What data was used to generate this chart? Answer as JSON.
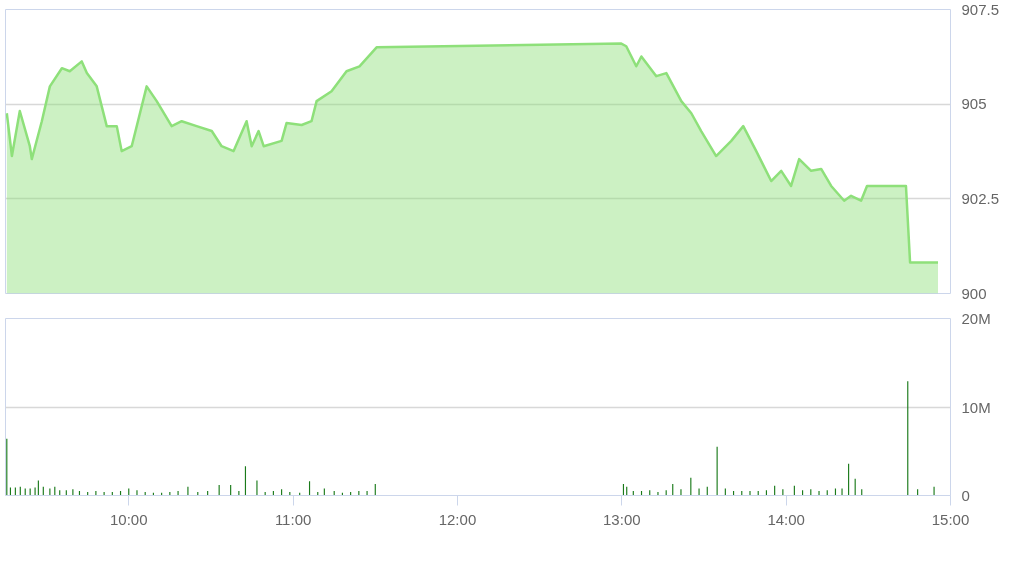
{
  "chart_data": [
    {
      "type": "area",
      "tick_labels": "y",
      "grid": "y",
      "xlim": [
        9.25,
        15
      ],
      "ylim": [
        900,
        907.5
      ],
      "yticks": [
        900,
        902.5,
        905,
        907.5
      ],
      "series": [
        {
          "color": "#8ee07a",
          "x": [
            9.258,
            9.289,
            9.337,
            9.398,
            9.41,
            9.471,
            9.52,
            9.593,
            9.641,
            9.714,
            9.745,
            9.805,
            9.866,
            9.927,
            9.957,
            10.018,
            10.109,
            10.17,
            10.261,
            10.322,
            10.413,
            10.505,
            10.565,
            10.638,
            10.717,
            10.748,
            10.79,
            10.821,
            10.93,
            10.96,
            11.052,
            11.112,
            11.143,
            11.234,
            11.325,
            11.404,
            11.508,
            12.997,
            13.027,
            13.088,
            13.119,
            13.21,
            13.271,
            13.362,
            13.423,
            13.483,
            13.574,
            13.666,
            13.739,
            13.818,
            13.909,
            13.97,
            14.03,
            14.079,
            14.152,
            14.213,
            14.274,
            14.353,
            14.395,
            14.456,
            14.492,
            14.729,
            14.754,
            14.924
          ],
          "values": [
            904.76,
            903.63,
            904.82,
            903.89,
            903.55,
            904.55,
            905.47,
            905.95,
            905.87,
            906.13,
            905.82,
            905.47,
            904.42,
            904.42,
            903.76,
            903.89,
            905.47,
            905.08,
            904.42,
            904.55,
            904.42,
            904.29,
            903.89,
            903.76,
            904.55,
            903.89,
            904.29,
            903.89,
            904.03,
            904.5,
            904.45,
            904.55,
            905.08,
            905.34,
            905.87,
            906.0,
            906.5,
            906.6,
            906.53,
            906.0,
            906.26,
            905.74,
            905.82,
            905.08,
            904.76,
            904.29,
            903.63,
            904.03,
            904.42,
            903.76,
            902.97,
            903.24,
            902.84,
            903.55,
            903.24,
            903.29,
            902.84,
            902.45,
            902.58,
            902.45,
            902.84,
            902.84,
            900.82,
            900.82
          ]
        }
      ]
    },
    {
      "type": "bar",
      "grid": "y",
      "xlim": [
        9.25,
        15
      ],
      "ylim": [
        0,
        20
      ],
      "yticks": [
        0,
        {
          "value": 10,
          "label": "10M"
        },
        {
          "value": 20,
          "label": "20M"
        }
      ],
      "xticks": [
        {
          "value": 10,
          "label": "10:00"
        },
        {
          "value": 11,
          "label": "11:00"
        },
        {
          "value": 12,
          "label": "12:00"
        },
        {
          "value": 13,
          "label": "13:00"
        },
        {
          "value": 14,
          "label": "14:00"
        },
        {
          "value": 15,
          "label": "15:00"
        }
      ],
      "series": [
        {
          "color": "#1a7a1a",
          "x": [
            9.258,
            9.28,
            9.31,
            9.34,
            9.37,
            9.4,
            9.43,
            9.45,
            9.48,
            9.52,
            9.55,
            9.58,
            9.62,
            9.66,
            9.7,
            9.75,
            9.8,
            9.85,
            9.9,
            9.95,
            10.0,
            10.05,
            10.1,
            10.15,
            10.2,
            10.25,
            10.3,
            10.36,
            10.42,
            10.48,
            10.55,
            10.62,
            10.67,
            10.71,
            10.78,
            10.83,
            10.88,
            10.93,
            10.98,
            11.04,
            11.1,
            11.15,
            11.19,
            11.25,
            11.3,
            11.35,
            11.4,
            11.45,
            11.5,
            13.01,
            13.03,
            13.07,
            13.12,
            13.17,
            13.22,
            13.27,
            13.31,
            13.36,
            13.42,
            13.47,
            13.52,
            13.58,
            13.63,
            13.68,
            13.73,
            13.78,
            13.83,
            13.88,
            13.93,
            13.98,
            14.05,
            14.1,
            14.15,
            14.2,
            14.25,
            14.3,
            14.34,
            14.38,
            14.42,
            14.46,
            14.74,
            14.8,
            14.9
          ],
          "values": [
            6.4,
            0.9,
            0.9,
            1.0,
            0.8,
            0.8,
            0.9,
            1.7,
            1.0,
            0.8,
            1.0,
            0.6,
            0.6,
            0.7,
            0.5,
            0.4,
            0.5,
            0.4,
            0.4,
            0.5,
            0.8,
            0.6,
            0.4,
            0.3,
            0.3,
            0.4,
            0.5,
            1.0,
            0.4,
            0.5,
            1.2,
            1.2,
            0.5,
            3.3,
            1.7,
            0.4,
            0.5,
            0.7,
            0.4,
            0.3,
            1.6,
            0.4,
            0.8,
            0.5,
            0.3,
            0.4,
            0.5,
            0.5,
            1.3,
            1.3,
            1.0,
            0.5,
            0.5,
            0.6,
            0.4,
            0.6,
            1.3,
            0.7,
            2.0,
            0.8,
            1.0,
            5.5,
            0.8,
            0.5,
            0.5,
            0.5,
            0.5,
            0.6,
            1.1,
            0.7,
            1.1,
            0.6,
            0.7,
            0.5,
            0.6,
            0.8,
            0.8,
            3.6,
            1.9,
            0.7,
            12.9,
            0.7,
            1.0
          ]
        }
      ]
    }
  ]
}
